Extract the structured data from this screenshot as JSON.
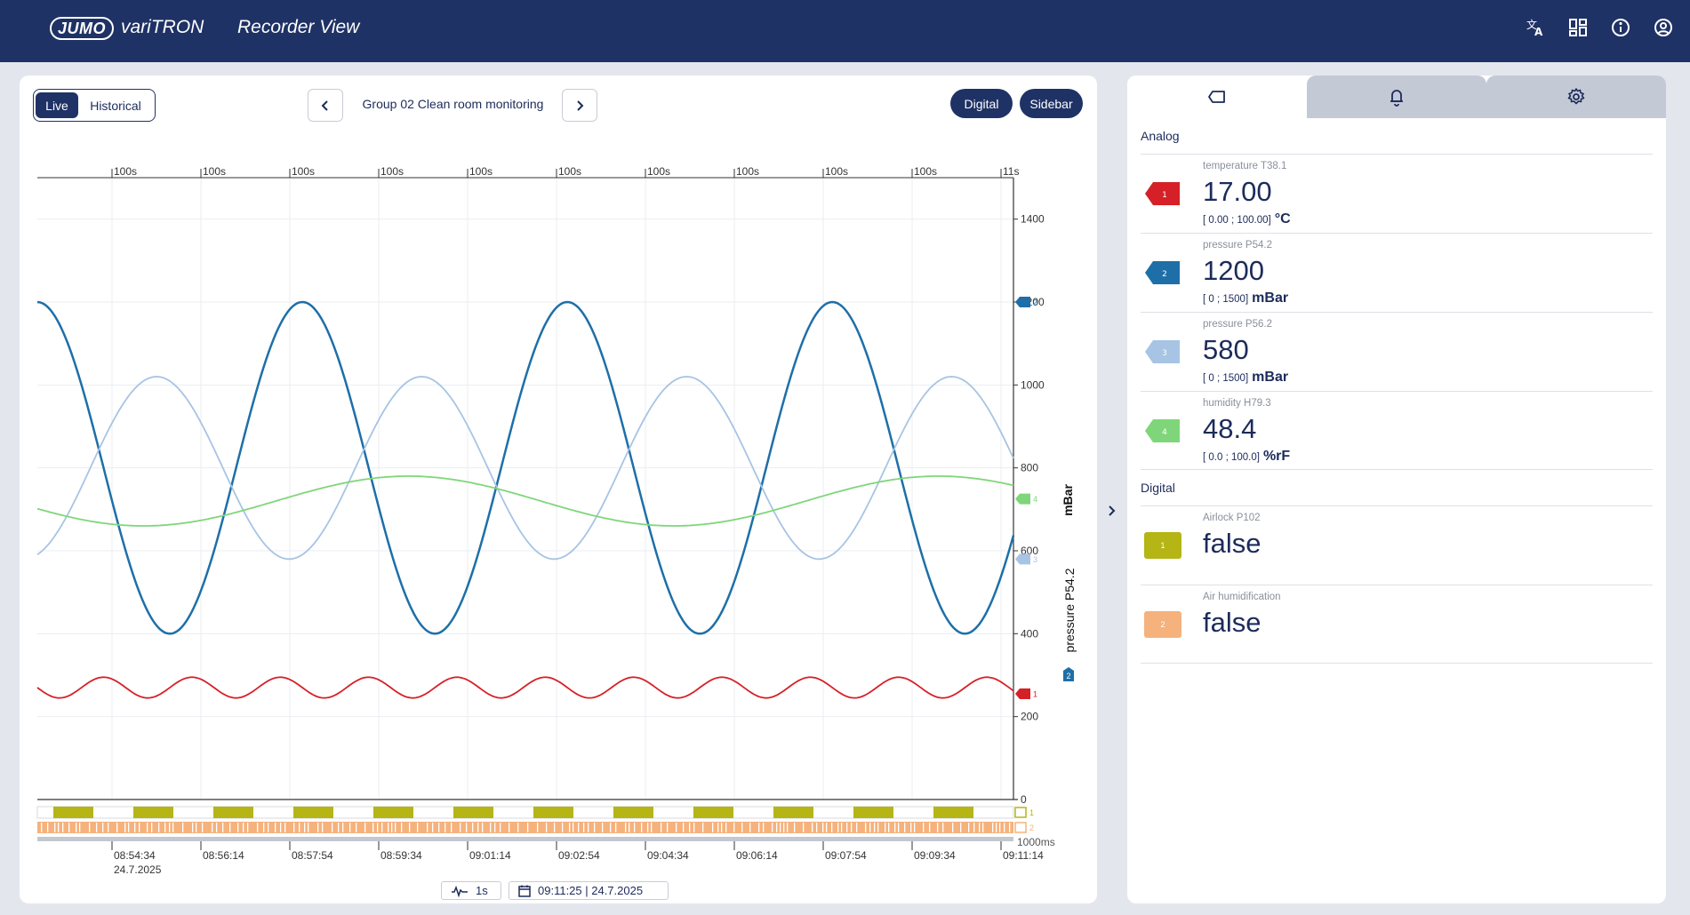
{
  "header": {
    "logo_brand": "JUMO",
    "logo_product": "variTRON",
    "page_title": "Recorder View",
    "icons": [
      "translate-icon",
      "dashboard-icon",
      "info-icon",
      "account-icon"
    ]
  },
  "toolbar": {
    "mode_live": "Live",
    "mode_historical": "Historical",
    "group_title": "Group 02 Clean room monitoring",
    "digital_label": "Digital",
    "sidebar_label": "Sidebar"
  },
  "chart_data": {
    "type": "line",
    "ylabel_unit": "mBar",
    "ylabel_name": "pressure P54.2",
    "ylabel_channel": "2",
    "ylim": [
      0,
      1500
    ],
    "y_ticks": [
      0,
      200,
      400,
      600,
      800,
      1000,
      1200,
      1400
    ],
    "top_interval_labels": [
      "100s",
      "100s",
      "100s",
      "100s",
      "100s",
      "100s",
      "100s",
      "100s",
      "100s",
      "100s",
      "11s"
    ],
    "x_tick_labels": [
      "08:54:34",
      "08:56:14",
      "08:57:54",
      "08:59:34",
      "09:01:14",
      "09:02:54",
      "09:04:34",
      "09:06:14",
      "09:07:54",
      "09:09:34",
      "09:11:14"
    ],
    "x_date_label": "24.7.2025",
    "digital_scale_label": "1000ms",
    "grid": true,
    "series": [
      {
        "channel": "1",
        "color": "#d62027",
        "kind": "sine",
        "center": 270,
        "amplitude": 25,
        "period_s": 100,
        "phase": 0.25,
        "marker_value": 255
      },
      {
        "channel": "2",
        "color": "#1e6fa8",
        "kind": "sine",
        "center": 800,
        "amplitude": 400,
        "period_s": 300,
        "phase": 0.0,
        "marker_value": 1200
      },
      {
        "channel": "3",
        "color": "#a7c4e4",
        "kind": "sine",
        "center": 800,
        "amplitude": 220,
        "period_s": 300,
        "phase": 0.55,
        "marker_value": 580
      },
      {
        "channel": "4",
        "color": "#7fd67a",
        "kind": "sine",
        "center": 720,
        "amplitude": 60,
        "period_s": 600,
        "phase": 0.3,
        "marker_value": 725
      }
    ],
    "digital_series": [
      {
        "channel": "1",
        "color": "#b5b515"
      },
      {
        "channel": "2",
        "color": "#f5b27d"
      }
    ]
  },
  "bottom": {
    "interval_value": "1s",
    "timestamp": "09:11:25 | 24.7.2025"
  },
  "sidebar": {
    "analog_title": "Analog",
    "digital_title": "Digital",
    "analog": [
      {
        "channel": "1",
        "color": "#d62027",
        "name": "temperature T38.1",
        "value": "17.00",
        "range": "[ 0.00 ; 100.00]",
        "unit": "°C"
      },
      {
        "channel": "2",
        "color": "#1e6fa8",
        "name": "pressure P54.2",
        "value": "1200",
        "range": "[ 0 ; 1500]",
        "unit": "mBar"
      },
      {
        "channel": "3",
        "color": "#a7c4e4",
        "name": "pressure P56.2",
        "value": "580",
        "range": "[ 0 ; 1500]",
        "unit": "mBar"
      },
      {
        "channel": "4",
        "color": "#7fd67a",
        "name": "humidity H79.3",
        "value": "48.4",
        "range": "[ 0.0 ; 100.0]",
        "unit": "%rF"
      }
    ],
    "digital": [
      {
        "channel": "1",
        "color": "#b5b515",
        "name": "Airlock P102",
        "value": "false"
      },
      {
        "channel": "2",
        "color": "#f5b27d",
        "name": "Air humidification",
        "value": "false"
      }
    ]
  }
}
